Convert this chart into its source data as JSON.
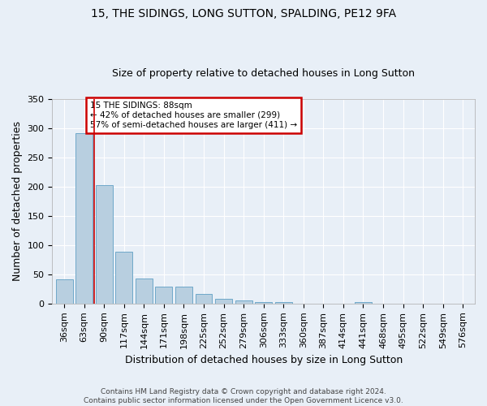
{
  "title1": "15, THE SIDINGS, LONG SUTTON, SPALDING, PE12 9FA",
  "title2": "Size of property relative to detached houses in Long Sutton",
  "xlabel": "Distribution of detached houses by size in Long Sutton",
  "ylabel": "Number of detached properties",
  "footer1": "Contains HM Land Registry data © Crown copyright and database right 2024.",
  "footer2": "Contains public sector information licensed under the Open Government Licence v3.0.",
  "bin_labels": [
    "36sqm",
    "63sqm",
    "90sqm",
    "117sqm",
    "144sqm",
    "171sqm",
    "198sqm",
    "225sqm",
    "252sqm",
    "279sqm",
    "306sqm",
    "333sqm",
    "360sqm",
    "387sqm",
    "414sqm",
    "441sqm",
    "468sqm",
    "495sqm",
    "522sqm",
    "549sqm",
    "576sqm"
  ],
  "bar_values": [
    41,
    291,
    203,
    88,
    43,
    29,
    29,
    16,
    8,
    5,
    3,
    2,
    0,
    0,
    0,
    3,
    0,
    0,
    0,
    0,
    0
  ],
  "bar_color": "#b8cfe0",
  "bar_edge_color": "#6fa8c9",
  "annotation_text": "15 THE SIDINGS: 88sqm\n← 42% of detached houses are smaller (299)\n57% of semi-detached houses are larger (411) →",
  "annotation_box_color": "#ffffff",
  "annotation_box_edge_color": "#cc0000",
  "property_line_color": "#cc0000",
  "background_color": "#e8eff7",
  "grid_color": "#ffffff",
  "ylim": [
    0,
    350
  ],
  "yticks": [
    0,
    50,
    100,
    150,
    200,
    250,
    300,
    350
  ],
  "property_line_bin_index": 1,
  "title1_fontsize": 10,
  "title2_fontsize": 9,
  "tick_fontsize": 8,
  "ylabel_fontsize": 9,
  "xlabel_fontsize": 9,
  "footer_fontsize": 6.5,
  "annot_fontsize": 7.5
}
